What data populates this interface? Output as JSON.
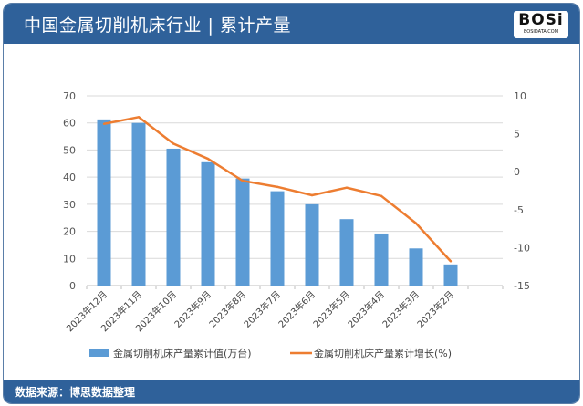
{
  "header": {
    "title": "中国金属切削机床行业 | 累计产量",
    "logo_text": "BOSi",
    "logo_sub": "BOSIDATA.COM"
  },
  "footer": {
    "source": "数据来源：博思数据整理"
  },
  "colors": {
    "header": "#2f619a",
    "bar": "#5b9bd5",
    "line": "#ed7d31"
  },
  "chart_data": {
    "type": "bar+line",
    "categories": [
      "2023年12月",
      "2023年11月",
      "2023年10月",
      "2023年9月",
      "2023年8月",
      "2023年7月",
      "2023年6月",
      "2023年5月",
      "2023年4月",
      "2023年3月",
      "2023年2月"
    ],
    "series": [
      {
        "name": "金属切削机床产量累计值(万台)",
        "type": "bar",
        "axis": "left",
        "values": [
          61.3,
          60.0,
          50.5,
          45.5,
          39.5,
          34.8,
          30.0,
          24.5,
          19.2,
          13.7,
          7.8
        ]
      },
      {
        "name": "金属切削机床产量累计增长(%)",
        "type": "line",
        "axis": "right",
        "values": [
          6.3,
          7.2,
          3.7,
          1.7,
          -1.2,
          -2.0,
          -3.1,
          -2.1,
          -3.2,
          -6.8,
          -11.8
        ]
      }
    ],
    "left_axis": {
      "range": [
        0,
        70
      ],
      "ticks": [
        0,
        10,
        20,
        30,
        40,
        50,
        60,
        70
      ]
    },
    "right_axis": {
      "range": [
        -15,
        10
      ],
      "ticks": [
        -15,
        -10,
        -5,
        0,
        5,
        10
      ]
    },
    "grid": true,
    "legend": "bottom"
  }
}
